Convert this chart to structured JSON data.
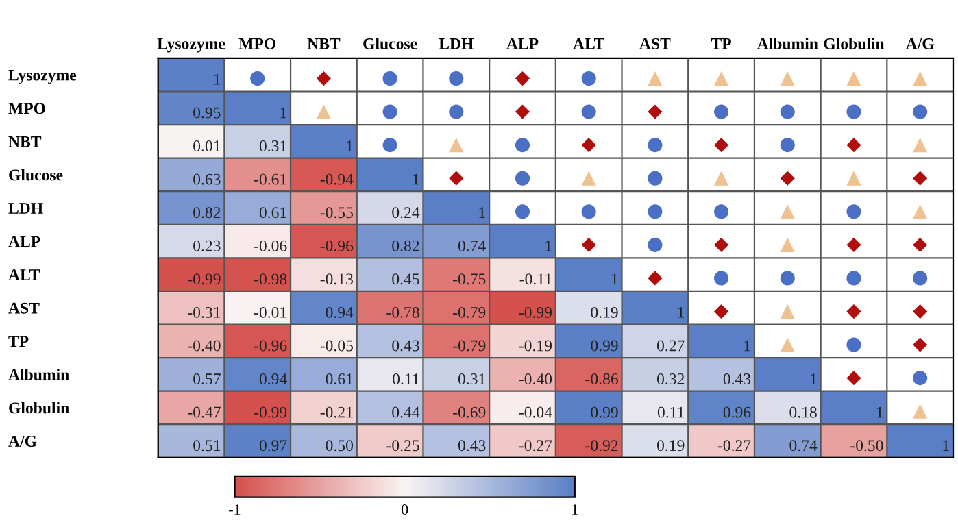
{
  "chart_data": {
    "type": "heatmap",
    "categories": [
      "Lysozyme",
      "MPO",
      "NBT",
      "Glucose",
      "LDH",
      "ALP",
      "ALT",
      "AST",
      "TP",
      "Albumin",
      "Globulin",
      "A/G"
    ],
    "y_categories": [
      "Lysozyme",
      "MPO",
      "NBT",
      "Glucose",
      "LDH",
      "ALP",
      "ALT",
      "AST",
      "TP",
      "Albumin",
      "Globulin",
      "A/G"
    ],
    "cells": [
      [
        1,
        null,
        null,
        null,
        null,
        null,
        null,
        null,
        null,
        null,
        null,
        null
      ],
      [
        0.95,
        1,
        null,
        null,
        null,
        null,
        null,
        null,
        null,
        null,
        null,
        null
      ],
      [
        0.01,
        0.31,
        1,
        null,
        null,
        null,
        null,
        null,
        null,
        null,
        null,
        null
      ],
      [
        0.63,
        -0.61,
        -0.94,
        1,
        null,
        null,
        null,
        null,
        null,
        null,
        null,
        null
      ],
      [
        0.82,
        0.61,
        -0.55,
        0.24,
        1,
        null,
        null,
        null,
        null,
        null,
        null,
        null
      ],
      [
        0.23,
        -0.06,
        -0.96,
        0.82,
        0.74,
        1,
        null,
        null,
        null,
        null,
        null,
        null
      ],
      [
        -0.99,
        -0.98,
        -0.13,
        0.45,
        -0.75,
        -0.11,
        1,
        null,
        null,
        null,
        null,
        null
      ],
      [
        -0.31,
        -0.01,
        0.94,
        -0.78,
        -0.79,
        -0.99,
        0.19,
        1,
        null,
        null,
        null,
        null
      ],
      [
        -0.4,
        -0.96,
        -0.05,
        0.43,
        -0.79,
        -0.19,
        0.99,
        0.27,
        1,
        null,
        null,
        null
      ],
      [
        0.57,
        0.94,
        0.61,
        0.11,
        0.31,
        -0.4,
        -0.86,
        0.32,
        0.43,
        1,
        null,
        null
      ],
      [
        -0.47,
        -0.99,
        -0.21,
        0.44,
        -0.69,
        -0.04,
        0.99,
        0.11,
        0.96,
        0.18,
        1,
        null
      ],
      [
        0.51,
        0.97,
        0.5,
        -0.25,
        0.43,
        -0.27,
        -0.92,
        0.19,
        -0.27,
        0.74,
        -0.5,
        1
      ]
    ],
    "cell_labels": [
      [
        "1",
        "●",
        "◆",
        "●",
        "●",
        "◆",
        "●",
        "▲",
        "▲",
        "▲",
        "▲",
        "▲"
      ],
      [
        "0.95",
        "1",
        "▲",
        "●",
        "●",
        "◆",
        "●",
        "◆",
        "●",
        "●",
        "●",
        "●"
      ],
      [
        "0.01",
        "0.31",
        "1",
        "●",
        "▲",
        "●",
        "◆",
        "●",
        "◆",
        "●",
        "◆",
        "▲"
      ],
      [
        "0.63",
        "-0.61",
        "-0.94",
        "1",
        "◆",
        "●",
        "▲",
        "●",
        "▲",
        "◆",
        "▲",
        "◆"
      ],
      [
        "0.82",
        "0.61",
        "-0.55",
        "0.24",
        "1",
        "●",
        "●",
        "●",
        "●",
        "▲",
        "●",
        "▲"
      ],
      [
        "0.23",
        "-0.06",
        "-0.96",
        "0.82",
        "0.74",
        "1",
        "◆",
        "●",
        "◆",
        "▲",
        "◆",
        "◆"
      ],
      [
        "-0.99",
        "-0.98",
        "-0.13",
        "0.45",
        "-0.75",
        "-0.11",
        "1",
        "◆",
        "●",
        "●",
        "●",
        "●"
      ],
      [
        "-0.31",
        "-0.01",
        "0.94",
        "-0.78",
        "-0.79",
        "-0.99",
        "0.19",
        "1",
        "◆",
        "▲",
        "◆",
        "◆"
      ],
      [
        "-0.40",
        "-0.96",
        "-0.05",
        "0.43",
        "-0.79",
        "-0.19",
        "0.99",
        "0.27",
        "1",
        "▲",
        "●",
        "◆"
      ],
      [
        "0.57",
        "0.94",
        "0.61",
        "0.11",
        "0.31",
        "-0.40",
        "-0.86",
        "0.32",
        "0.43",
        "1",
        "◆",
        "●"
      ],
      [
        "-0.47",
        "-0.99",
        "-0.21",
        "0.44",
        "-0.69",
        "-0.04",
        "0.99",
        "0.11",
        "0.96",
        "0.18",
        "1",
        "▲"
      ],
      [
        "0.51",
        "0.97",
        "0.50",
        "-0.25",
        "0.43",
        "-0.27",
        "-0.92",
        "0.19",
        "-0.27",
        "0.74",
        "-0.50",
        "1"
      ]
    ],
    "clim": [
      -1,
      1
    ],
    "cticks": [
      -1,
      0,
      1
    ]
  }
}
